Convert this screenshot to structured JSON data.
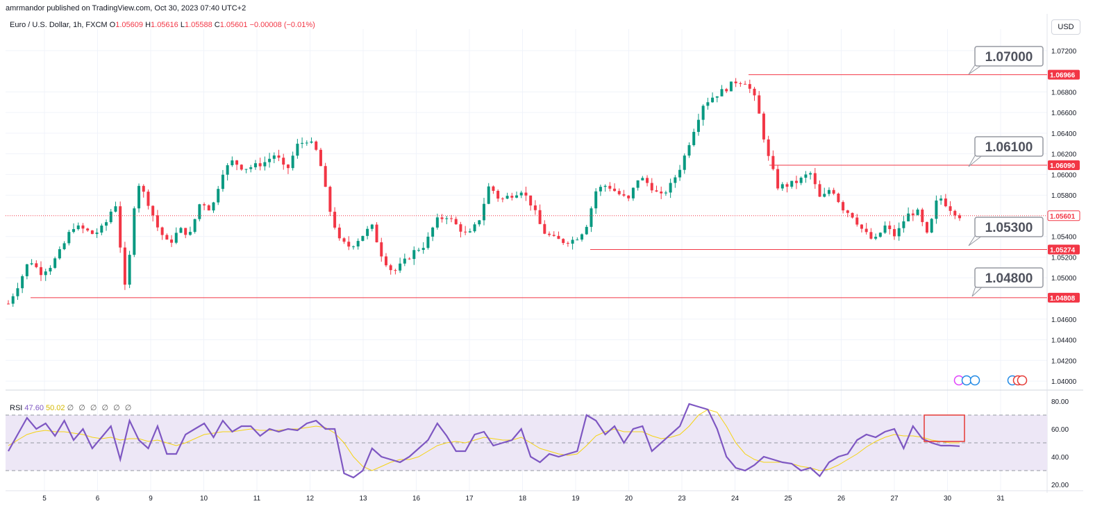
{
  "publisher_line": "amrmandor published on TradingView.com, Oct 30, 2023 07:40 UTC+2",
  "legend": {
    "symbol": "Euro / U.S. Dollar, 1h, FXCM",
    "open_label": "O",
    "open": "1.05609",
    "high_label": "H",
    "high": "1.05616",
    "low_label": "L",
    "low": "1.05588",
    "close_label": "C",
    "close": "1.05601",
    "change": "−0.00008 (−0.01%)"
  },
  "currency": "USD",
  "rsi_legend": {
    "label": "RSI",
    "rsi": "47.60",
    "ma": "50.02",
    "extras": "∅ ∅ ∅ ∅ ∅ ∅"
  },
  "colors": {
    "up": "#089981",
    "down": "#f23645",
    "level": "#f23645",
    "rsi": "#7e57c2",
    "rsi_ma": "#f5d312",
    "rsi_band": "#ede7f6"
  },
  "chart_data": [
    {
      "type": "candlestick",
      "title": "Euro / U.S. Dollar, 1h, FXCM",
      "timeframe": "1h",
      "x_tick_labels": [
        "5",
        "6",
        "9",
        "10",
        "11",
        "12",
        "13",
        "16",
        "17",
        "18",
        "19",
        "20",
        "23",
        "24",
        "25",
        "26",
        "27",
        "30",
        "31"
      ],
      "y_tick_labels": [
        "1.04000",
        "1.04200",
        "1.04400",
        "1.04600",
        "1.05000",
        "1.05200",
        "1.05400",
        "1.05800",
        "1.06000",
        "1.06200",
        "1.06400",
        "1.06600",
        "1.06800",
        "1.07200"
      ],
      "ylim": [
        1.0394,
        1.0734
      ],
      "close_path": [
        [
          "5",
          1.0475
        ],
        [
          "5",
          1.0495
        ],
        [
          "5",
          1.0518
        ],
        [
          "5",
          1.0505
        ],
        [
          "5",
          1.0512
        ],
        [
          "6",
          1.0528
        ],
        [
          "6",
          1.055
        ],
        [
          "6",
          1.0547
        ],
        [
          "6",
          1.0542
        ],
        [
          "6",
          1.055
        ],
        [
          "9",
          1.0574
        ],
        [
          "9",
          1.0482
        ],
        [
          "9",
          1.0595
        ],
        [
          "9",
          1.0575
        ],
        [
          "9",
          1.0548
        ],
        [
          "10",
          1.0532
        ],
        [
          "10",
          1.0547
        ],
        [
          "10",
          1.0542
        ],
        [
          "10",
          1.0575
        ],
        [
          "10",
          1.0565
        ],
        [
          "11",
          1.0602
        ],
        [
          "11",
          1.0613
        ],
        [
          "11",
          1.0606
        ],
        [
          "11",
          1.0608
        ],
        [
          "11",
          1.0612
        ],
        [
          "12",
          1.062
        ],
        [
          "12",
          1.0602
        ],
        [
          "12",
          1.0628
        ],
        [
          "12",
          1.0634
        ],
        [
          "12",
          1.062
        ],
        [
          "13",
          1.0568
        ],
        [
          "13",
          1.0535
        ],
        [
          "13",
          1.053
        ],
        [
          "13",
          1.054
        ],
        [
          "13",
          1.055
        ],
        [
          "16",
          1.052
        ],
        [
          "16",
          1.0505
        ],
        [
          "16",
          1.0515
        ],
        [
          "16",
          1.0526
        ],
        [
          "16",
          1.0532
        ],
        [
          "17",
          1.0555
        ],
        [
          "17",
          1.056
        ],
        [
          "17",
          1.055
        ],
        [
          "17",
          1.054
        ],
        [
          "17",
          1.0555
        ],
        [
          "18",
          1.059
        ],
        [
          "18",
          1.0575
        ],
        [
          "18",
          1.058
        ],
        [
          "18",
          1.0585
        ],
        [
          "18",
          1.057
        ],
        [
          "19",
          1.0545
        ],
        [
          "19",
          1.0538
        ],
        [
          "19",
          1.0535
        ],
        [
          "19",
          1.0537
        ],
        [
          "19",
          1.0548
        ],
        [
          "20",
          1.0585
        ],
        [
          "20",
          1.059
        ],
        [
          "20",
          1.0582
        ],
        [
          "20",
          1.0575
        ],
        [
          "20",
          1.0598
        ],
        [
          "23",
          1.059
        ],
        [
          "23",
          1.0578
        ],
        [
          "23",
          1.059
        ],
        [
          "23",
          1.061
        ],
        [
          "23",
          1.064
        ],
        [
          "24",
          1.0668
        ],
        [
          "24",
          1.0676
        ],
        [
          "24",
          1.0682
        ],
        [
          "24",
          1.069
        ],
        [
          "24",
          1.069
        ],
        [
          "24",
          1.067
        ],
        [
          "25",
          1.062
        ],
        [
          "25",
          1.0588
        ],
        [
          "25",
          1.059
        ],
        [
          "25",
          1.0594
        ],
        [
          "25",
          1.0602
        ],
        [
          "26",
          1.0575
        ],
        [
          "26",
          1.0588
        ],
        [
          "26",
          1.0568
        ],
        [
          "26",
          1.056
        ],
        [
          "26",
          1.0545
        ],
        [
          "27",
          1.0535
        ],
        [
          "27",
          1.055
        ],
        [
          "27",
          1.054
        ],
        [
          "27",
          1.056
        ],
        [
          "27",
          1.0565
        ],
        [
          "30",
          1.054
        ],
        [
          "30",
          1.058
        ],
        [
          "30",
          1.0568
        ],
        [
          "30",
          1.056
        ]
      ],
      "horizontal_levels": [
        "1.06966",
        "1.06090",
        "1.05274",
        "1.04808"
      ],
      "current_price": "1.05601",
      "callouts": [
        "1.07000",
        "1.06100",
        "1.05300",
        "1.04800"
      ]
    },
    {
      "type": "line",
      "title": "RSI",
      "y_tick_labels": [
        "20.00",
        "40.00",
        "60.00",
        "80.00"
      ],
      "ylim": [
        18,
        84
      ],
      "bands": [
        30,
        50,
        70
      ],
      "series": [
        {
          "name": "RSI",
          "values": [
            44,
            56,
            68,
            60,
            64,
            55,
            66,
            52,
            60,
            46,
            54,
            62,
            38,
            66,
            52,
            46,
            62,
            42,
            42,
            56,
            60,
            64,
            54,
            66,
            58,
            62,
            62,
            55,
            60,
            58,
            60,
            59,
            64,
            66,
            60,
            60,
            28,
            25,
            30,
            46,
            40,
            38,
            36,
            40,
            46,
            52,
            64,
            55,
            44,
            44,
            56,
            58,
            48,
            50,
            52,
            60,
            40,
            36,
            42,
            40,
            42,
            44,
            70,
            66,
            56,
            62,
            50,
            60,
            62,
            44,
            50,
            56,
            62,
            78,
            76,
            74,
            60,
            40,
            32,
            30,
            34,
            40,
            38,
            36,
            35,
            30,
            32,
            26,
            36,
            40,
            42,
            52,
            56,
            54,
            58,
            60,
            46,
            62,
            53,
            50,
            48,
            48,
            47.6
          ]
        },
        {
          "name": "RSI MA",
          "values": [
            48,
            52,
            56,
            58,
            59,
            58,
            58,
            57,
            56,
            54,
            53,
            54,
            52,
            53,
            53,
            51,
            52,
            50,
            48,
            50,
            53,
            56,
            57,
            58,
            58,
            59,
            60,
            59,
            59,
            59,
            60,
            60,
            61,
            62,
            61,
            57,
            50,
            40,
            33,
            30,
            33,
            36,
            38,
            38,
            40,
            44,
            48,
            50,
            51,
            50,
            52,
            54,
            53,
            52,
            52,
            54,
            50,
            46,
            44,
            42,
            41,
            42,
            48,
            55,
            58,
            60,
            58,
            58,
            58,
            55,
            53,
            54,
            56,
            62,
            70,
            74,
            72,
            62,
            50,
            42,
            38,
            36,
            36,
            36,
            35,
            33,
            32,
            30,
            31,
            34,
            38,
            42,
            47,
            51,
            54,
            56,
            55,
            55,
            54,
            52,
            51,
            50,
            50.02
          ]
        }
      ]
    }
  ]
}
